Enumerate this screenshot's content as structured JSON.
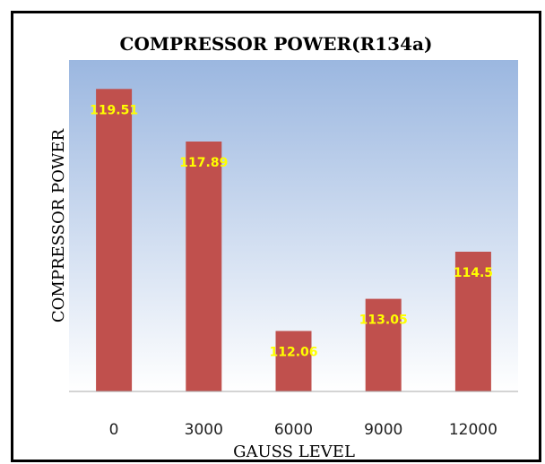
{
  "chart_data": {
    "type": "bar",
    "title": "COMPRESSOR POWER(R134a)",
    "xlabel": "GAUSS LEVEL",
    "ylabel": "COMPRESSOR POWER",
    "categories": [
      "0",
      "3000",
      "6000",
      "9000",
      "12000"
    ],
    "values": [
      119.51,
      117.89,
      112.06,
      113.05,
      114.5
    ],
    "data_labels": [
      "119.51",
      "117.89",
      "112.06",
      "113.05",
      "114.5"
    ],
    "ylim": [
      110.2,
      120.4
    ],
    "grid": false,
    "legend": "none"
  },
  "colors": {
    "bar": "#c0504d",
    "data_label": "#ffff00",
    "plot_bg_top": "#9bb7e0",
    "plot_bg_bottom": "#ffffff",
    "axis_line": "#aaaaaa"
  }
}
